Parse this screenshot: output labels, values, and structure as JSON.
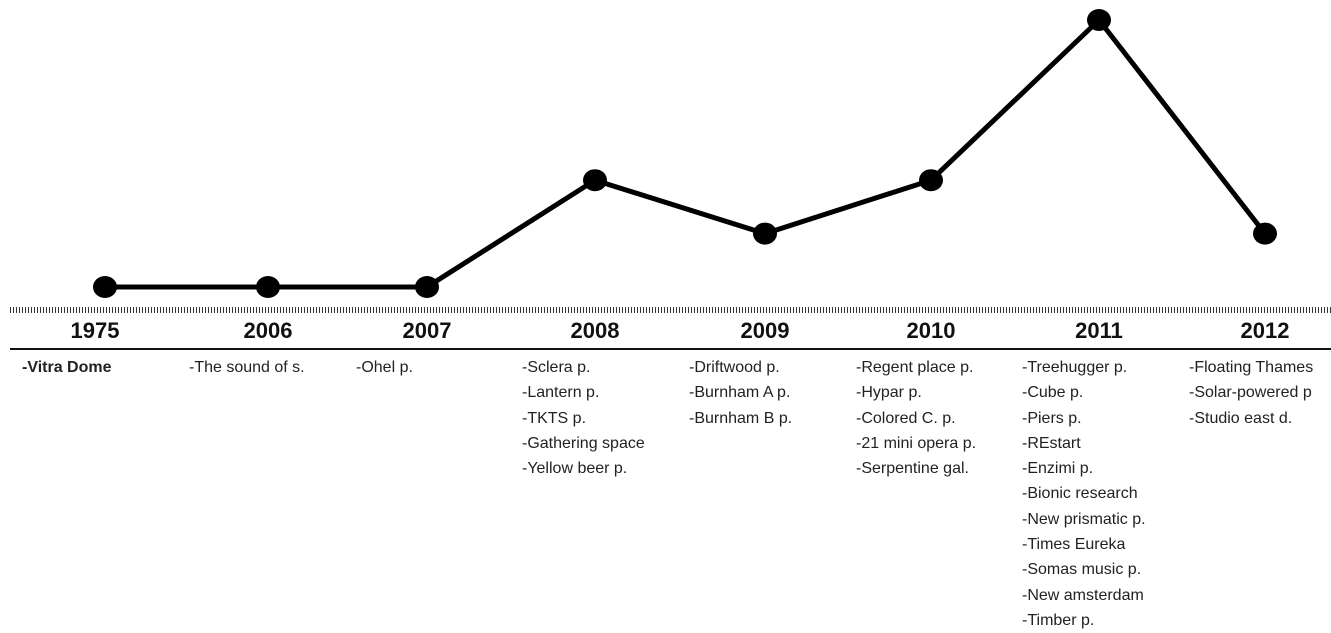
{
  "chart_data": {
    "type": "line",
    "categories": [
      "1975",
      "2006",
      "2007",
      "2008",
      "2009",
      "2010",
      "2011",
      "2012"
    ],
    "values": [
      1,
      1,
      1,
      5,
      3,
      5,
      11,
      3
    ],
    "ylim": [
      0,
      11.5
    ],
    "grid": false,
    "line_color": "#000000",
    "marker_color": "#000000"
  },
  "years": [
    "1975",
    "2006",
    "2007",
    "2008",
    "2009",
    "2010",
    "2011",
    "2012"
  ],
  "projects": [
    {
      "year": "1975",
      "items": [
        "-Vitra Dome"
      ],
      "bold_first": true
    },
    {
      "year": "2006",
      "items": [
        "-The sound of s."
      ]
    },
    {
      "year": "2007",
      "items": [
        "-Ohel p."
      ]
    },
    {
      "year": "2008",
      "items": [
        "-Sclera p.",
        "-Lantern p.",
        "-TKTS p.",
        "-Gathering space",
        "-Yellow beer p."
      ]
    },
    {
      "year": "2009",
      "items": [
        "-Driftwood p.",
        "-Burnham A p.",
        "-Burnham B p."
      ]
    },
    {
      "year": "2010",
      "items": [
        "-Regent place p.",
        "-Hypar p.",
        "-Colored C. p.",
        "-21 mini opera p.",
        "-Serpentine gal."
      ]
    },
    {
      "year": "2011",
      "items": [
        "-Treehugger p.",
        "-Cube p.",
        "-Piers p.",
        "-REstart",
        "-Enzimi p.",
        "-Bionic research",
        "-New prismatic p.",
        "-Times Eureka",
        "-Somas music p.",
        "-New amsterdam",
        "-Timber p."
      ]
    },
    {
      "year": "2012",
      "items": [
        "-Floating Thames",
        "-Solar-powered p",
        "-Studio east d."
      ]
    }
  ]
}
